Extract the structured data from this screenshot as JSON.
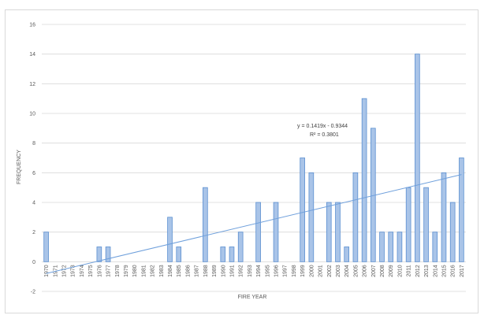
{
  "chart_data": {
    "type": "bar",
    "title": "",
    "xlabel": "FIRE YEAR",
    "ylabel": "FREQUENCY",
    "ylim": [
      -2,
      16
    ],
    "y_ticks": [
      -2,
      0,
      2,
      4,
      6,
      8,
      10,
      12,
      14,
      16
    ],
    "grid": true,
    "legend": "none",
    "categories": [
      "1970",
      "1971",
      "1972",
      "1973",
      "1974",
      "1975",
      "1976",
      "1977",
      "1978",
      "1979",
      "1980",
      "1981",
      "1982",
      "1983",
      "1984",
      "1985",
      "1986",
      "1987",
      "1988",
      "1989",
      "1990",
      "1991",
      "1992",
      "1993",
      "1994",
      "1995",
      "1996",
      "1997",
      "1998",
      "1999",
      "2000",
      "2001",
      "2002",
      "2003",
      "2004",
      "2005",
      "2006",
      "2007",
      "2008",
      "2009",
      "2010",
      "2011",
      "2012",
      "2013",
      "2014",
      "2015",
      "2016",
      "2017"
    ],
    "series": [
      {
        "values": [
          2,
          0,
          0,
          0,
          0,
          0,
          1,
          1,
          0,
          0,
          0,
          0,
          0,
          0,
          3,
          1,
          0,
          0,
          5,
          0,
          1,
          1,
          2,
          0,
          4,
          0,
          4,
          0,
          0,
          7,
          6,
          0,
          4,
          4,
          1,
          6,
          11,
          9,
          2,
          2,
          2,
          5,
          14,
          5,
          2,
          6,
          4,
          7
        ]
      }
    ],
    "trendline": {
      "type": "linear",
      "slope": 0.1419,
      "intercept": -0.9344,
      "equation_label": "y = 0.1419x - 0.9344",
      "r2_label": "R² = 0.3801"
    },
    "colors": {
      "bar_fill": "#a9c4e8",
      "bar_stroke": "#5b8fd0",
      "trendline": "#6fa0dc",
      "grid": "#d9d9d9"
    }
  }
}
